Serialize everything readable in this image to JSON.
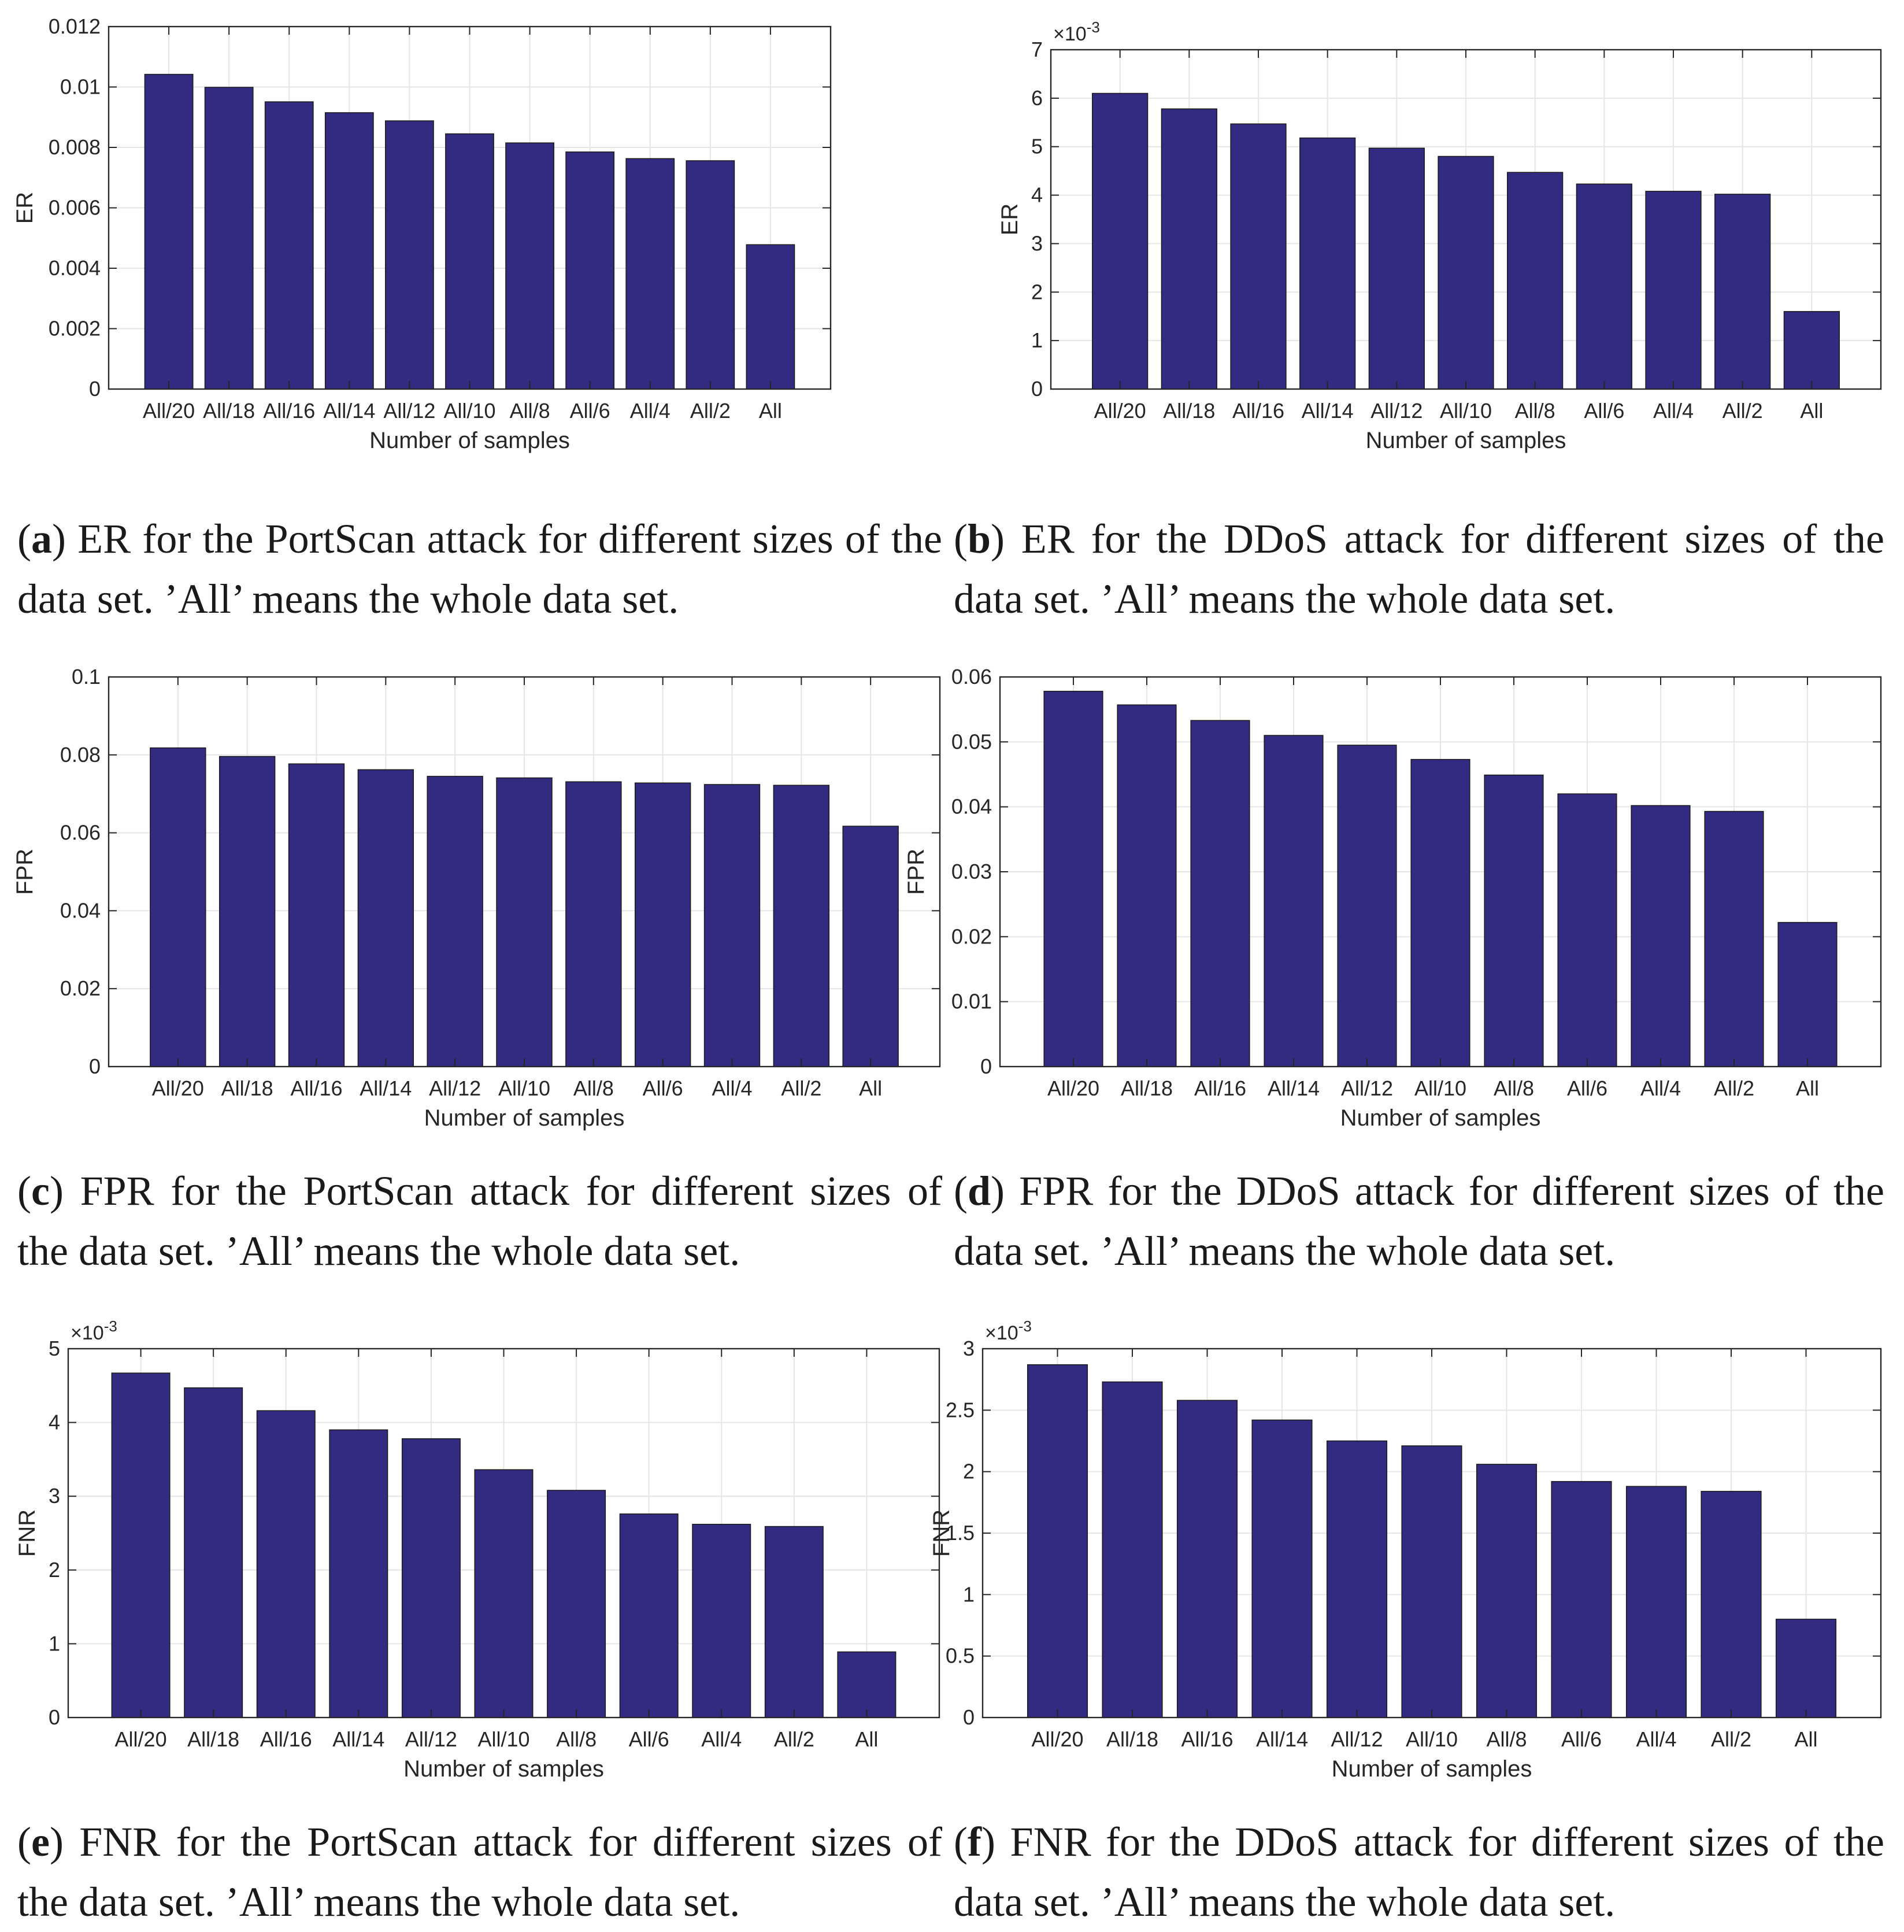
{
  "figures": [
    {
      "id": "a",
      "caption_tag": "a",
      "caption_text": "ER for the PortScan attack for different sizes of the data set. ’All’ means the whole data set.",
      "chart_data": {
        "type": "bar",
        "xlabel": "Number of samples",
        "ylabel": "ER",
        "categories": [
          "All/20",
          "All/18",
          "All/16",
          "All/14",
          "All/12",
          "All/10",
          "All/8",
          "All/6",
          "All/4",
          "All/2",
          "All"
        ],
        "values": [
          0.01042,
          0.00999,
          0.00951,
          0.00915,
          0.00888,
          0.00845,
          0.00815,
          0.00785,
          0.00763,
          0.00756,
          0.00478
        ],
        "ylim": [
          0,
          0.012
        ],
        "yticks": [
          0,
          0.002,
          0.004,
          0.006,
          0.008,
          0.01,
          0.012
        ],
        "ytick_labels": [
          "0",
          "0.002",
          "0.004",
          "0.006",
          "0.008",
          "0.01",
          "0.012"
        ],
        "multiplier": "",
        "grid": true,
        "bar_color": "#332a81"
      }
    },
    {
      "id": "b",
      "caption_tag": "b",
      "caption_text": "ER for the DDoS attack for different sizes of the data set. ’All’ means the whole data set.",
      "chart_data": {
        "type": "bar",
        "xlabel": "Number of samples",
        "ylabel": "ER",
        "categories": [
          "All/20",
          "All/18",
          "All/16",
          "All/14",
          "All/12",
          "All/10",
          "All/8",
          "All/6",
          "All/4",
          "All/2",
          "All"
        ],
        "values": [
          6.1,
          5.78,
          5.47,
          5.18,
          4.97,
          4.8,
          4.47,
          4.23,
          4.08,
          4.02,
          1.6
        ],
        "ylim": [
          0,
          7
        ],
        "yticks": [
          0,
          1,
          2,
          3,
          4,
          5,
          6,
          7
        ],
        "ytick_labels": [
          "0",
          "1",
          "2",
          "3",
          "4",
          "5",
          "6",
          "7"
        ],
        "multiplier": "×10",
        "multiplier_exp": "-3",
        "grid": true,
        "bar_color": "#332a81"
      }
    },
    {
      "id": "c",
      "caption_tag": "c",
      "caption_text": "FPR for the PortScan attack for different sizes of the data set. ’All’ means the whole data set.",
      "chart_data": {
        "type": "bar",
        "xlabel": "Number of samples",
        "ylabel": "FPR",
        "categories": [
          "All/20",
          "All/18",
          "All/16",
          "All/14",
          "All/12",
          "All/10",
          "All/8",
          "All/6",
          "All/4",
          "All/2",
          "All"
        ],
        "values": [
          0.0818,
          0.0796,
          0.0777,
          0.0762,
          0.0745,
          0.0741,
          0.0731,
          0.0728,
          0.0724,
          0.0722,
          0.0617
        ],
        "ylim": [
          0,
          0.1
        ],
        "yticks": [
          0,
          0.02,
          0.04,
          0.06,
          0.08,
          0.1
        ],
        "ytick_labels": [
          "0",
          "0.02",
          "0.04",
          "0.06",
          "0.08",
          "0.1"
        ],
        "multiplier": "",
        "grid": true,
        "bar_color": "#332a81"
      }
    },
    {
      "id": "d",
      "caption_tag": "d",
      "caption_text": "FPR for the DDoS attack for different sizes of the data set. ’All’ means the whole data set.",
      "chart_data": {
        "type": "bar",
        "xlabel": "Number of samples",
        "ylabel": "FPR",
        "categories": [
          "All/20",
          "All/18",
          "All/16",
          "All/14",
          "All/12",
          "All/10",
          "All/8",
          "All/6",
          "All/4",
          "All/2",
          "All"
        ],
        "values": [
          0.0578,
          0.0557,
          0.0533,
          0.051,
          0.0495,
          0.0473,
          0.0449,
          0.042,
          0.0402,
          0.0393,
          0.0222
        ],
        "ylim": [
          0,
          0.06
        ],
        "yticks": [
          0,
          0.01,
          0.02,
          0.03,
          0.04,
          0.05,
          0.06
        ],
        "ytick_labels": [
          "0",
          "0.01",
          "0.02",
          "0.03",
          "0.04",
          "0.05",
          "0.06"
        ],
        "multiplier": "",
        "grid": true,
        "bar_color": "#332a81"
      }
    },
    {
      "id": "e",
      "caption_tag": "e",
      "caption_text": "FNR for the PortScan attack for different sizes of the data set. ’All’ means the whole data set.",
      "chart_data": {
        "type": "bar",
        "xlabel": "Number of samples",
        "ylabel": "FNR",
        "categories": [
          "All/20",
          "All/18",
          "All/16",
          "All/14",
          "All/12",
          "All/10",
          "All/8",
          "All/6",
          "All/4",
          "All/2",
          "All"
        ],
        "values": [
          4.67,
          4.47,
          4.16,
          3.9,
          3.78,
          3.36,
          3.08,
          2.76,
          2.62,
          2.59,
          0.89
        ],
        "ylim": [
          0,
          5
        ],
        "yticks": [
          0,
          1,
          2,
          3,
          4,
          5
        ],
        "ytick_labels": [
          "0",
          "1",
          "2",
          "3",
          "4",
          "5"
        ],
        "multiplier": "×10",
        "multiplier_exp": "-3",
        "grid": true,
        "bar_color": "#332a81"
      }
    },
    {
      "id": "f",
      "caption_tag": "f",
      "caption_text": "FNR for the DDoS attack for different sizes of the data set. ’All’ means the whole data set.",
      "chart_data": {
        "type": "bar",
        "xlabel": "Number of samples",
        "ylabel": "FNR",
        "categories": [
          "All/20",
          "All/18",
          "All/16",
          "All/14",
          "All/12",
          "All/10",
          "All/8",
          "All/6",
          "All/4",
          "All/2",
          "All"
        ],
        "values": [
          2.87,
          2.73,
          2.58,
          2.42,
          2.25,
          2.21,
          2.06,
          1.92,
          1.88,
          1.84,
          0.8
        ],
        "ylim": [
          0,
          3
        ],
        "yticks": [
          0,
          0.5,
          1,
          1.5,
          2,
          2.5,
          3
        ],
        "ytick_labels": [
          "0",
          "0.5",
          "1",
          "1.5",
          "2",
          "2.5",
          "3"
        ],
        "multiplier": "×10",
        "multiplier_exp": "-3",
        "grid": true,
        "bar_color": "#332a81"
      }
    }
  ]
}
